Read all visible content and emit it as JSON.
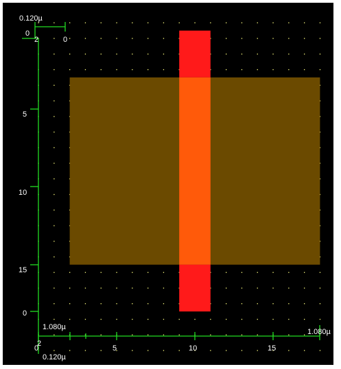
{
  "colors": {
    "background": "#000000",
    "grid_dot": "#ffff80",
    "ruler": "#22dd22",
    "label_text": "#ffffff",
    "poly_layer": "#ff1a1a",
    "diffusion_layer": "#6b4a00",
    "overlap": "#ff5a0a"
  },
  "rulers": {
    "top_scale": "0.120µ",
    "top_ruler_start": "2",
    "top_ruler_end": "0",
    "left_origin": "0",
    "left_ticks": [
      "5",
      "10",
      "15"
    ],
    "left_bottom": "0",
    "right_scale": "1.080µ",
    "bottom_left_scale": "1.080µ",
    "bottom_origin_top": "2",
    "bottom_origin": "0",
    "bottom_ticks": [
      "5",
      "10",
      "15"
    ],
    "bottom_scale": "0.120µ"
  },
  "layout": {
    "units": "grid",
    "poly_rect": {
      "x0": 9,
      "x1": 11,
      "y0": -0.5,
      "y1": 17.5
    },
    "diffusion_rect": {
      "x0": 2,
      "x1": 18,
      "y0": 2.5,
      "y1": 14.5
    }
  }
}
